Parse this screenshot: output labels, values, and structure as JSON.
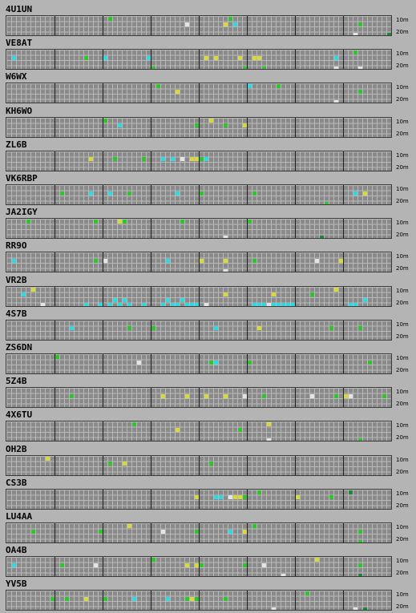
{
  "band_labels": {
    "top": "10m",
    "bottom": "20m"
  },
  "colors": {
    "green": "#2ec42e",
    "cyan": "#2ed8e0",
    "yellow": "#d8d83a",
    "white": "#e4e4e4",
    "dkgreen": "#1a8a3a"
  },
  "stations": [
    {
      "callsign": "4U1UN",
      "cells": [
        [
          21,
          0,
          "green"
        ],
        [
          37,
          1,
          "white"
        ],
        [
          45,
          1,
          "yellow"
        ],
        [
          46,
          0,
          "green"
        ],
        [
          47,
          1,
          "cyan"
        ],
        [
          73,
          1,
          "green"
        ],
        [
          72,
          3,
          "white"
        ],
        [
          79,
          3,
          "dkgreen"
        ]
      ]
    },
    {
      "callsign": "VE8AT",
      "cells": [
        [
          1,
          1,
          "cyan"
        ],
        [
          16,
          1,
          "green"
        ],
        [
          20,
          1,
          "cyan"
        ],
        [
          29,
          1,
          "cyan"
        ],
        [
          30,
          3,
          "green"
        ],
        [
          41,
          1,
          "yellow"
        ],
        [
          43,
          1,
          "yellow"
        ],
        [
          48,
          1,
          "yellow"
        ],
        [
          49,
          3,
          "green"
        ],
        [
          51,
          1,
          "yellow"
        ],
        [
          52,
          1,
          "yellow"
        ],
        [
          53,
          3,
          "green"
        ],
        [
          68,
          1,
          "cyan"
        ],
        [
          68,
          3,
          "white"
        ],
        [
          72,
          0,
          "green"
        ],
        [
          73,
          3,
          "white"
        ]
      ]
    },
    {
      "callsign": "W6WX",
      "cells": [
        [
          31,
          0,
          "green"
        ],
        [
          35,
          1,
          "yellow"
        ],
        [
          50,
          0,
          "cyan"
        ],
        [
          56,
          0,
          "green"
        ],
        [
          68,
          3,
          "white"
        ],
        [
          73,
          1,
          "green"
        ]
      ]
    },
    {
      "callsign": "KH6WO",
      "cells": [
        [
          20,
          0,
          "green"
        ],
        [
          23,
          1,
          "cyan"
        ],
        [
          39,
          1,
          "green"
        ],
        [
          42,
          0,
          "yellow"
        ],
        [
          45,
          1,
          "green"
        ],
        [
          49,
          1,
          "yellow"
        ]
      ]
    },
    {
      "callsign": "ZL6B",
      "cells": [
        [
          17,
          1,
          "yellow"
        ],
        [
          22,
          1,
          "green"
        ],
        [
          28,
          1,
          "green"
        ],
        [
          32,
          1,
          "cyan"
        ],
        [
          34,
          1,
          "cyan"
        ],
        [
          36,
          1,
          "white"
        ],
        [
          38,
          1,
          "yellow"
        ],
        [
          39,
          1,
          "yellow"
        ],
        [
          40,
          1,
          "green"
        ],
        [
          41,
          1,
          "cyan"
        ]
      ]
    },
    {
      "callsign": "VK6RBP",
      "cells": [
        [
          11,
          1,
          "green"
        ],
        [
          17,
          1,
          "cyan"
        ],
        [
          21,
          1,
          "cyan"
        ],
        [
          25,
          1,
          "green"
        ],
        [
          35,
          1,
          "cyan"
        ],
        [
          40,
          1,
          "green"
        ],
        [
          51,
          1,
          "green"
        ],
        [
          66,
          3,
          "green"
        ],
        [
          72,
          1,
          "cyan"
        ],
        [
          74,
          1,
          "yellow"
        ]
      ]
    },
    {
      "callsign": "JA2IGY",
      "cells": [
        [
          4,
          0,
          "green"
        ],
        [
          18,
          0,
          "green"
        ],
        [
          23,
          0,
          "yellow"
        ],
        [
          24,
          0,
          "green"
        ],
        [
          36,
          0,
          "green"
        ],
        [
          45,
          3,
          "white"
        ],
        [
          50,
          0,
          "green"
        ],
        [
          65,
          3,
          "dkgreen"
        ]
      ]
    },
    {
      "callsign": "RR9O",
      "cells": [
        [
          1,
          1,
          "cyan"
        ],
        [
          18,
          1,
          "green"
        ],
        [
          20,
          1,
          "white"
        ],
        [
          33,
          1,
          "cyan"
        ],
        [
          40,
          1,
          "yellow"
        ],
        [
          45,
          1,
          "yellow"
        ],
        [
          45,
          3,
          "white"
        ],
        [
          51,
          1,
          "green"
        ],
        [
          64,
          1,
          "white"
        ],
        [
          69,
          1,
          "yellow"
        ]
      ]
    },
    {
      "callsign": "VR2B",
      "cells": [
        [
          3,
          1,
          "cyan"
        ],
        [
          5,
          0,
          "yellow"
        ],
        [
          7,
          3,
          "white"
        ],
        [
          16,
          3,
          "cyan"
        ],
        [
          19,
          3,
          "cyan"
        ],
        [
          21,
          3,
          "cyan"
        ],
        [
          22,
          2,
          "cyan"
        ],
        [
          23,
          3,
          "cyan"
        ],
        [
          24,
          2,
          "cyan"
        ],
        [
          25,
          3,
          "cyan"
        ],
        [
          28,
          3,
          "cyan"
        ],
        [
          32,
          3,
          "cyan"
        ],
        [
          33,
          2,
          "cyan"
        ],
        [
          34,
          3,
          "cyan"
        ],
        [
          35,
          3,
          "cyan"
        ],
        [
          36,
          2,
          "cyan"
        ],
        [
          37,
          3,
          "cyan"
        ],
        [
          38,
          3,
          "cyan"
        ],
        [
          39,
          3,
          "cyan"
        ],
        [
          41,
          3,
          "white"
        ],
        [
          45,
          1,
          "yellow"
        ],
        [
          51,
          3,
          "cyan"
        ],
        [
          52,
          3,
          "cyan"
        ],
        [
          53,
          3,
          "cyan"
        ],
        [
          54,
          3,
          "white"
        ],
        [
          55,
          3,
          "cyan"
        ],
        [
          56,
          3,
          "cyan"
        ],
        [
          57,
          3,
          "cyan"
        ],
        [
          58,
          3,
          "cyan"
        ],
        [
          59,
          3,
          "cyan"
        ],
        [
          55,
          1,
          "yellow"
        ],
        [
          63,
          1,
          "green"
        ],
        [
          68,
          0,
          "yellow"
        ],
        [
          71,
          3,
          "cyan"
        ],
        [
          72,
          3,
          "cyan"
        ],
        [
          74,
          2,
          "cyan"
        ]
      ]
    },
    {
      "callsign": "4S7B",
      "cells": [
        [
          13,
          1,
          "cyan"
        ],
        [
          25,
          1,
          "green"
        ],
        [
          30,
          1,
          "green"
        ],
        [
          43,
          1,
          "cyan"
        ],
        [
          52,
          1,
          "yellow"
        ],
        [
          67,
          1,
          "green"
        ],
        [
          73,
          1,
          "green"
        ]
      ]
    },
    {
      "callsign": "ZS6DN",
      "cells": [
        [
          10,
          0,
          "green"
        ],
        [
          27,
          1,
          "white"
        ],
        [
          42,
          1,
          "green"
        ],
        [
          43,
          1,
          "cyan"
        ],
        [
          50,
          1,
          "green"
        ],
        [
          75,
          1,
          "green"
        ]
      ]
    },
    {
      "callsign": "5Z4B",
      "cells": [
        [
          13,
          1,
          "green"
        ],
        [
          32,
          1,
          "yellow"
        ],
        [
          37,
          1,
          "yellow"
        ],
        [
          41,
          1,
          "yellow"
        ],
        [
          45,
          1,
          "yellow"
        ],
        [
          49,
          1,
          "white"
        ],
        [
          53,
          1,
          "green"
        ],
        [
          63,
          1,
          "white"
        ],
        [
          68,
          1,
          "green"
        ],
        [
          70,
          1,
          "yellow"
        ],
        [
          71,
          1,
          "white"
        ],
        [
          78,
          1,
          "green"
        ]
      ]
    },
    {
      "callsign": "4X6TU",
      "cells": [
        [
          26,
          0,
          "green"
        ],
        [
          35,
          1,
          "yellow"
        ],
        [
          48,
          1,
          "green"
        ],
        [
          54,
          0,
          "yellow"
        ],
        [
          54,
          3,
          "white"
        ],
        [
          73,
          3,
          "green"
        ]
      ]
    },
    {
      "callsign": "OH2B",
      "cells": [
        [
          8,
          0,
          "yellow"
        ],
        [
          21,
          1,
          "green"
        ],
        [
          24,
          1,
          "yellow"
        ],
        [
          42,
          1,
          "green"
        ]
      ]
    },
    {
      "callsign": "CS3B",
      "cells": [
        [
          39,
          1,
          "yellow"
        ],
        [
          43,
          1,
          "cyan"
        ],
        [
          44,
          1,
          "cyan"
        ],
        [
          46,
          1,
          "white"
        ],
        [
          47,
          1,
          "yellow"
        ],
        [
          48,
          1,
          "yellow"
        ],
        [
          49,
          1,
          "green"
        ],
        [
          52,
          0,
          "green"
        ],
        [
          60,
          1,
          "yellow"
        ],
        [
          67,
          1,
          "green"
        ],
        [
          71,
          0,
          "dkgreen"
        ]
      ]
    },
    {
      "callsign": "LU4AA",
      "cells": [
        [
          5,
          1,
          "green"
        ],
        [
          19,
          1,
          "green"
        ],
        [
          25,
          0,
          "yellow"
        ],
        [
          32,
          1,
          "white"
        ],
        [
          39,
          1,
          "green"
        ],
        [
          46,
          1,
          "cyan"
        ],
        [
          49,
          1,
          "yellow"
        ],
        [
          51,
          0,
          "green"
        ],
        [
          73,
          1,
          "green"
        ],
        [
          73,
          3,
          "green"
        ]
      ]
    },
    {
      "callsign": "OA4B",
      "cells": [
        [
          1,
          1,
          "cyan"
        ],
        [
          11,
          1,
          "green"
        ],
        [
          18,
          1,
          "white"
        ],
        [
          30,
          0,
          "green"
        ],
        [
          37,
          1,
          "yellow"
        ],
        [
          39,
          1,
          "yellow"
        ],
        [
          40,
          1,
          "green"
        ],
        [
          49,
          1,
          "green"
        ],
        [
          53,
          1,
          "white"
        ],
        [
          57,
          3,
          "white"
        ],
        [
          64,
          0,
          "yellow"
        ],
        [
          73,
          1,
          "green"
        ],
        [
          73,
          3,
          "dkgreen"
        ]
      ]
    },
    {
      "callsign": "YV5B",
      "cells": [
        [
          9,
          1,
          "green"
        ],
        [
          12,
          1,
          "green"
        ],
        [
          16,
          1,
          "yellow"
        ],
        [
          20,
          1,
          "green"
        ],
        [
          26,
          1,
          "cyan"
        ],
        [
          33,
          1,
          "cyan"
        ],
        [
          37,
          1,
          "green"
        ],
        [
          38,
          1,
          "yellow"
        ],
        [
          39,
          1,
          "green"
        ],
        [
          45,
          1,
          "green"
        ],
        [
          55,
          3,
          "white"
        ],
        [
          62,
          0,
          "green"
        ],
        [
          72,
          3,
          "white"
        ],
        [
          74,
          3,
          "dkgreen"
        ]
      ]
    }
  ]
}
